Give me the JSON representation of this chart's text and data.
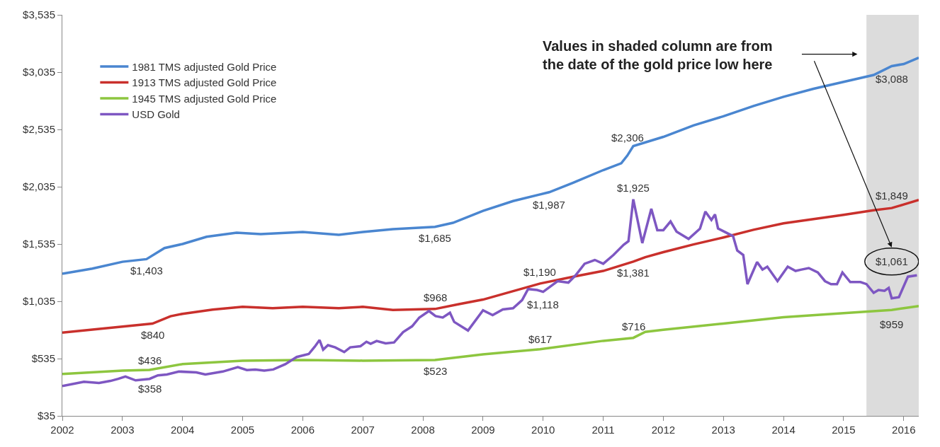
{
  "chart_data": {
    "type": "line",
    "xlim": [
      2002,
      2016.25
    ],
    "xticks": [
      2002,
      2003,
      2004,
      2005,
      2006,
      2007,
      2008,
      2009,
      2010,
      2011,
      2012,
      2013,
      2014,
      2015,
      2016
    ],
    "ylim": [
      35,
      3535
    ],
    "yticks": [
      {
        "value": 35,
        "label": "$35"
      },
      {
        "value": 535,
        "label": "$535"
      },
      {
        "value": 1035,
        "label": "$1,035"
      },
      {
        "value": 1535,
        "label": "$1,535"
      },
      {
        "value": 2035,
        "label": "$2,035"
      },
      {
        "value": 2535,
        "label": "$2,535"
      },
      {
        "value": 3035,
        "label": "$3,035"
      },
      {
        "value": 3535,
        "label": "$3,535"
      }
    ],
    "grid": false,
    "legend": "top left",
    "marker": "none",
    "line_style": "solid",
    "series": [
      {
        "name": "1981 TMS adjusted Gold Price",
        "color": "#4a86d0",
        "x": [
          2002,
          2002.5,
          2003,
          2003.4,
          2003.7,
          2004,
          2004.4,
          2004.9,
          2005.3,
          2006,
          2006.6,
          2007,
          2007.5,
          2008.2,
          2008.5,
          2009,
          2009.5,
          2010.1,
          2010.5,
          2011,
          2011.3,
          2011.4,
          2011.5,
          2012,
          2012.5,
          2013,
          2013.5,
          2014,
          2014.5,
          2015,
          2015.5,
          2015.8,
          2016,
          2016.25
        ],
        "values": [
          1275,
          1320,
          1380,
          1403,
          1500,
          1535,
          1598,
          1634,
          1622,
          1640,
          1616,
          1640,
          1665,
          1685,
          1720,
          1824,
          1910,
          1987,
          2070,
          2180,
          2240,
          2306,
          2390,
          2470,
          2570,
          2650,
          2740,
          2820,
          2890,
          2950,
          3010,
          3088,
          3106,
          3161
        ]
      },
      {
        "name": "1913 TMS adjusted Gold Price",
        "color": "#c9302c",
        "x": [
          2002,
          2003,
          2003.5,
          2003.8,
          2004,
          2004.5,
          2005,
          2005.5,
          2006,
          2006.6,
          2007,
          2007.5,
          2008.2,
          2008.6,
          2009,
          2009.95,
          2010.5,
          2011,
          2011.5,
          2011.7,
          2012,
          2012.5,
          2013,
          2013.5,
          2014,
          2015,
          2015.5,
          2015.8,
          2016,
          2016.25
        ],
        "values": [
          762,
          815,
          840,
          905,
          926,
          963,
          987,
          975,
          987,
          975,
          987,
          960,
          968,
          1010,
          1050,
          1190,
          1250,
          1300,
          1381,
          1420,
          1464,
          1531,
          1592,
          1659,
          1715,
          1790,
          1830,
          1849,
          1880,
          1920
        ]
      },
      {
        "name": "1945 TMS adjusted Gold Price",
        "color": "#8dc63f",
        "x": [
          2002,
          2003,
          2003.45,
          2004,
          2005,
          2006,
          2007,
          2008.2,
          2008.7,
          2009,
          2009.95,
          2011,
          2011.5,
          2011.7,
          2012,
          2013,
          2014,
          2015,
          2015.8,
          2016,
          2016.25
        ],
        "values": [
          401,
          430,
          436,
          487,
          517,
          523,
          517,
          523,
          554,
          572,
          617,
          690,
          716,
          768,
          786,
          841,
          896,
          932,
          959,
          975,
          993
        ]
      },
      {
        "name": "USD Gold",
        "color": "#7e57c2",
        "x": [
          2002,
          2002.36,
          2002.61,
          2002.8,
          2002.93,
          2003.05,
          2003.22,
          2003.45,
          2003.59,
          2003.74,
          2003.94,
          2004.23,
          2004.38,
          2004.67,
          2004.92,
          2005.07,
          2005.21,
          2005.36,
          2005.51,
          2005.71,
          2005.9,
          2006.1,
          2006.2,
          2006.28,
          2006.34,
          2006.42,
          2006.54,
          2006.69,
          2006.79,
          2006.96,
          2007.06,
          2007.13,
          2007.23,
          2007.38,
          2007.52,
          2007.67,
          2007.82,
          2007.94,
          2008.1,
          2008.21,
          2008.33,
          2008.45,
          2008.52,
          2008.75,
          2009.0,
          2009.16,
          2009.33,
          2009.5,
          2009.65,
          2009.75,
          2009.9,
          2010.0,
          2010.24,
          2010.42,
          2010.54,
          2010.69,
          2010.86,
          2011.0,
          2011.17,
          2011.34,
          2011.42,
          2011.5,
          2011.65,
          2011.8,
          2011.9,
          2012.0,
          2012.12,
          2012.22,
          2012.42,
          2012.61,
          2012.7,
          2012.8,
          2012.86,
          2012.91,
          2013.16,
          2013.23,
          2013.33,
          2013.4,
          2013.56,
          2013.65,
          2013.73,
          2013.9,
          2014.07,
          2014.2,
          2014.3,
          2014.42,
          2014.57,
          2014.69,
          2014.79,
          2014.89,
          2014.98,
          2015.11,
          2015.28,
          2015.38,
          2015.5,
          2015.58,
          2015.68,
          2015.75,
          2015.8,
          2015.92,
          2016.07,
          2016.22
        ],
        "values": [
          295,
          333,
          322,
          340,
          358,
          379,
          345,
          358,
          389,
          396,
          422,
          415,
          396,
          422,
          460,
          435,
          440,
          430,
          440,
          486,
          549,
          575,
          639,
          697,
          613,
          652,
          633,
          592,
          633,
          643,
          682,
          664,
          689,
          668,
          676,
          766,
          817,
          893,
          950,
          906,
          893,
          935,
          855,
          780,
          957,
          914,
          964,
          975,
          1045,
          1142,
          1134,
          1118,
          1211,
          1198,
          1262,
          1363,
          1396,
          1363,
          1439,
          1529,
          1560,
          1925,
          1543,
          1842,
          1656,
          1656,
          1732,
          1643,
          1580,
          1669,
          1818,
          1745,
          1793,
          1671,
          1604,
          1478,
          1439,
          1185,
          1378,
          1312,
          1337,
          1211,
          1337,
          1300,
          1312,
          1325,
          1287,
          1211,
          1185,
          1185,
          1287,
          1203,
          1203,
          1185,
          1109,
          1134,
          1126,
          1152,
          1061,
          1071,
          1250,
          1262
        ]
      }
    ],
    "bands": [
      {
        "axis": "x",
        "from": 2015.38,
        "to": 2016.25,
        "color": "#dcdcdc"
      }
    ],
    "annotations": [
      {
        "text": "$1,403",
        "x": 2003.4,
        "y": 1403
      },
      {
        "text": "$840",
        "x": 2003.5,
        "y": 840
      },
      {
        "text": "$436",
        "x": 2003.45,
        "y": 436
      },
      {
        "text": "$358",
        "x": 2003.45,
        "y": 358
      },
      {
        "text": "$1,685",
        "x": 2008.2,
        "y": 1685
      },
      {
        "text": "$968",
        "x": 2008.2,
        "y": 968
      },
      {
        "text": "$523",
        "x": 2008.2,
        "y": 523
      },
      {
        "text": "$1,987",
        "x": 2010.1,
        "y": 1987
      },
      {
        "text": "$1,190",
        "x": 2009.95,
        "y": 1190
      },
      {
        "text": "$1,118",
        "x": 2010.0,
        "y": 1118
      },
      {
        "text": "$617",
        "x": 2009.95,
        "y": 617
      },
      {
        "text": "$2,306",
        "x": 2011.4,
        "y": 2306
      },
      {
        "text": "$1,925",
        "x": 2011.5,
        "y": 1925
      },
      {
        "text": "$1,381",
        "x": 2011.5,
        "y": 1381
      },
      {
        "text": "$716",
        "x": 2011.5,
        "y": 716
      },
      {
        "text": "$3,088",
        "x": 2015.8,
        "y": 3088
      },
      {
        "text": "$1,849",
        "x": 2015.8,
        "y": 1849
      },
      {
        "text": "$1,061",
        "x": 2015.8,
        "y": 1061
      },
      {
        "text": "$959",
        "x": 2015.8,
        "y": 959
      },
      "Values in shaded column are from\nthe date of the gold price low here"
    ]
  }
}
